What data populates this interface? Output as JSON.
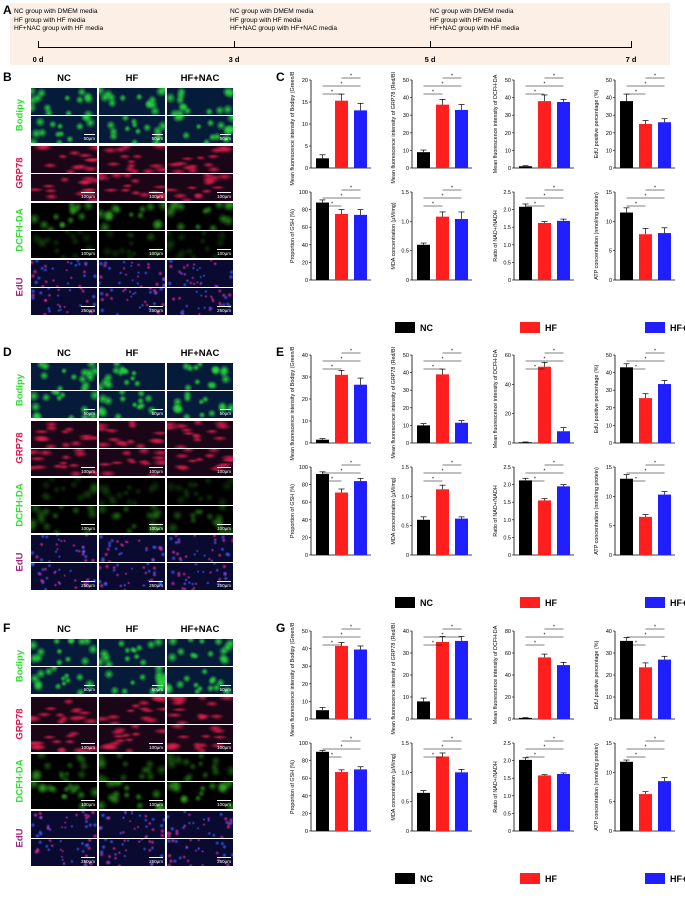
{
  "panel_letters": [
    "A",
    "B",
    "C",
    "D",
    "E",
    "F",
    "G"
  ],
  "timeline": {
    "boxes": [
      [
        "NC group with DMEM media",
        "HF group with HF media",
        "HF+NAC group with HF media"
      ],
      [
        "NC group with DMEM media",
        "HF group with HF media",
        "HF+NAC group with HF+NAC media"
      ],
      [
        "NC group with DMEM media",
        "HF group with HF media",
        "HF+NAC group with HF media"
      ]
    ],
    "days": [
      "0 d",
      "3 d",
      "5 d",
      "7 d"
    ]
  },
  "image_columns": [
    "NC",
    "HF",
    "HF+NAC"
  ],
  "image_rows": [
    {
      "stain": "Bodipy",
      "color": "#33dd33",
      "scale": "50µm"
    },
    {
      "stain": "GRP78",
      "color": "#e0154a",
      "scale": "100µm"
    },
    {
      "stain": "DCFH-DA",
      "color": "#33dd33",
      "scale": "100µm"
    },
    {
      "stain": "EdU",
      "color": "#a02080",
      "scale": "250µm"
    }
  ],
  "legend": [
    {
      "label": "NC",
      "color": "#000000"
    },
    {
      "label": "HF",
      "color": "#ff1f1f"
    },
    {
      "label": "HF+NAC",
      "color": "#1f1fff"
    }
  ],
  "significance_mark": "*",
  "chart_data": [
    {
      "panel": "C",
      "type": "bar",
      "categories": [
        "NC",
        "HF",
        "HF+NAC"
      ],
      "charts": [
        {
          "ylabel": "Mean fluorescence intensity of Bodipy (Green/Blue)",
          "ylim": [
            0,
            20
          ],
          "ticks": [
            "0",
            "5",
            "10",
            "15",
            "20"
          ],
          "values": [
            2.2,
            15.3,
            13.1
          ],
          "errors": [
            0.8,
            1.5,
            1.6
          ]
        },
        {
          "ylabel": "Mean fluorescence intensity of GRP78 (Red/Blue)",
          "ylim": [
            0,
            50
          ],
          "ticks": [
            "0",
            "10",
            "20",
            "30",
            "40",
            "50"
          ],
          "values": [
            9,
            36,
            33
          ],
          "errors": [
            1.2,
            3,
            3
          ]
        },
        {
          "ylabel": "Mean fluorescence intensity of DCFH-DA",
          "ylim": [
            0,
            50
          ],
          "ticks": [
            "0",
            "10",
            "20",
            "30",
            "40",
            "50"
          ],
          "values": [
            1,
            38,
            37.5
          ],
          "errors": [
            0.3,
            3.5,
            1.5
          ]
        },
        {
          "ylabel": "EdU positive percentage (%)",
          "ylim": [
            0,
            50
          ],
          "ticks": [
            "0",
            "10",
            "20",
            "30",
            "40",
            "50"
          ],
          "values": [
            38,
            25,
            26
          ],
          "errors": [
            4,
            2,
            2
          ]
        },
        {
          "ylabel": "Proportion of GSH (%)",
          "ylim": [
            0,
            100
          ],
          "ticks": [
            "0",
            "20",
            "40",
            "60",
            "80",
            "100"
          ],
          "values": [
            88,
            75,
            74
          ],
          "errors": [
            3,
            5,
            6
          ]
        },
        {
          "ylabel": "MDA concentration (µM/mg)",
          "ylim": [
            0,
            1.5
          ],
          "ticks": [
            "0",
            "0.5",
            "1.0",
            "1.5"
          ],
          "values": [
            0.6,
            1.08,
            1.04
          ],
          "errors": [
            0.03,
            0.08,
            0.12
          ]
        },
        {
          "ylabel": "Ratio of NAD+/NADH",
          "ylim": [
            0,
            2.5
          ],
          "ticks": [
            "0",
            "0.5",
            "1.0",
            "1.5",
            "2.0",
            "2.5"
          ],
          "values": [
            2.08,
            1.62,
            1.68
          ],
          "errors": [
            0.08,
            0.04,
            0.05
          ]
        },
        {
          "ylabel": "ATP concentration (nmol/mg protein)",
          "ylim": [
            0,
            15
          ],
          "ticks": [
            "0",
            "5",
            "10",
            "15"
          ],
          "values": [
            11.5,
            7.8,
            8.0
          ],
          "errors": [
            0.8,
            1.0,
            0.9
          ]
        }
      ]
    },
    {
      "panel": "E",
      "type": "bar",
      "categories": [
        "NC",
        "HF",
        "HF+NAC"
      ],
      "charts": [
        {
          "ylabel": "Mean fluorescence intensity of Bodipy (Green/Blue)",
          "ylim": [
            0,
            40
          ],
          "ticks": [
            "0",
            "10",
            "20",
            "30",
            "40"
          ],
          "values": [
            1.5,
            31,
            26.5
          ],
          "errors": [
            0.5,
            2,
            3
          ]
        },
        {
          "ylabel": "Mean fluorescence intensity of GRP78 (Red/Blue)",
          "ylim": [
            0,
            50
          ],
          "ticks": [
            "0",
            "10",
            "20",
            "30",
            "40",
            "50"
          ],
          "values": [
            10,
            39,
            11.5
          ],
          "errors": [
            1,
            3,
            1.2
          ]
        },
        {
          "ylabel": "Mean fluorescence intensity of DCFH-DA",
          "ylim": [
            0,
            60
          ],
          "ticks": [
            "0",
            "20",
            "40",
            "60"
          ],
          "values": [
            0.5,
            52,
            8
          ],
          "errors": [
            0.2,
            3,
            2.5
          ]
        },
        {
          "ylabel": "EdU positive percentage (%)",
          "ylim": [
            0,
            50
          ],
          "ticks": [
            "0",
            "10",
            "20",
            "30",
            "40",
            "50"
          ],
          "values": [
            43,
            25.5,
            33.5
          ],
          "errors": [
            2,
            2.5,
            2
          ]
        },
        {
          "ylabel": "Proportion of GSH (%)",
          "ylim": [
            0,
            100
          ],
          "ticks": [
            "0",
            "20",
            "40",
            "60",
            "80",
            "100"
          ],
          "values": [
            92,
            71,
            84
          ],
          "errors": [
            2.5,
            4,
            3
          ]
        },
        {
          "ylabel": "MDA concentration (µM/mg)",
          "ylim": [
            0,
            1.5
          ],
          "ticks": [
            "0",
            "0.5",
            "1.0",
            "1.5"
          ],
          "values": [
            0.6,
            1.12,
            0.62
          ],
          "errors": [
            0.05,
            0.07,
            0.03
          ]
        },
        {
          "ylabel": "Ratio of NAD+/NADH",
          "ylim": [
            0,
            2.5
          ],
          "ticks": [
            "0",
            "0.5",
            "1.0",
            "1.5",
            "2.0",
            "2.5"
          ],
          "values": [
            2.12,
            1.55,
            1.95
          ],
          "errors": [
            0.06,
            0.05,
            0.05
          ]
        },
        {
          "ylabel": "ATP concentration (nmol/mg protein)",
          "ylim": [
            0,
            15
          ],
          "ticks": [
            "0",
            "5",
            "10",
            "15"
          ],
          "values": [
            13,
            6.5,
            10.3
          ],
          "errors": [
            0.7,
            0.4,
            0.5
          ]
        }
      ]
    },
    {
      "panel": "G",
      "type": "bar",
      "categories": [
        "NC",
        "HF",
        "HF+NAC"
      ],
      "charts": [
        {
          "ylabel": "Mean fluorescence intensity of Bodipy (Green/Blue)",
          "ylim": [
            0,
            50
          ],
          "ticks": [
            "0",
            "10",
            "20",
            "30",
            "40",
            "50"
          ],
          "values": [
            5,
            41.5,
            39.5
          ],
          "errors": [
            1.5,
            2,
            2
          ]
        },
        {
          "ylabel": "Mean fluorescence intensity of GRP78 (Red/Blue)",
          "ylim": [
            0,
            40
          ],
          "ticks": [
            "0",
            "10",
            "20",
            "30",
            "40"
          ],
          "values": [
            8,
            35,
            35.5
          ],
          "errors": [
            1.5,
            2.5,
            2
          ]
        },
        {
          "ylabel": "Mean fluorescence intensity of DCFH-DA",
          "ylim": [
            0,
            80
          ],
          "ticks": [
            "0",
            "20",
            "40",
            "60",
            "80"
          ],
          "values": [
            1,
            56,
            49
          ],
          "errors": [
            0.3,
            3,
            2.5
          ]
        },
        {
          "ylabel": "EdU positive percentage (%)",
          "ylim": [
            0,
            40
          ],
          "ticks": [
            "0",
            "10",
            "20",
            "30",
            "40"
          ],
          "values": [
            35.5,
            23.5,
            27
          ],
          "errors": [
            1.5,
            2,
            1.5
          ]
        },
        {
          "ylabel": "Proportion of GSH (%)",
          "ylim": [
            0,
            100
          ],
          "ticks": [
            "0",
            "20",
            "40",
            "60",
            "80",
            "100"
          ],
          "values": [
            90,
            67,
            70
          ],
          "errors": [
            1.5,
            2.5,
            3
          ]
        },
        {
          "ylabel": "MDA concentration (µM/mg)",
          "ylim": [
            0,
            1.5
          ],
          "ticks": [
            "0",
            "0.5",
            "1.0",
            "1.5"
          ],
          "values": [
            0.65,
            1.27,
            1.0
          ],
          "errors": [
            0.04,
            0.06,
            0.05
          ]
        },
        {
          "ylabel": "Ratio of NAD+/NADH",
          "ylim": [
            0,
            2.5
          ],
          "ticks": [
            "0",
            "0.5",
            "1.0",
            "1.5",
            "2.0",
            "2.5"
          ],
          "values": [
            2.02,
            1.58,
            1.62
          ],
          "errors": [
            0.06,
            0.02,
            0.03
          ]
        },
        {
          "ylabel": "ATP concentration (nmol/mg protein)",
          "ylim": [
            0,
            15
          ],
          "ticks": [
            "0",
            "5",
            "10",
            "15"
          ],
          "values": [
            11.8,
            6.3,
            8.5
          ],
          "errors": [
            0.3,
            0.4,
            0.6
          ]
        }
      ]
    }
  ]
}
